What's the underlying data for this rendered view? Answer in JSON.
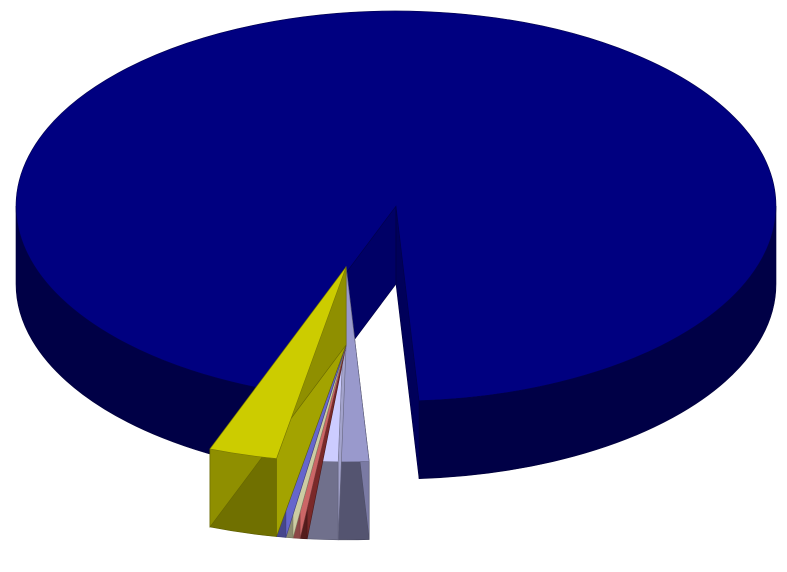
{
  "chart_data": {
    "type": "pie",
    "title": "",
    "three_d": true,
    "legend": "none",
    "series": [
      {
        "values": [
          93.2,
          1.3,
          1.3,
          0.3,
          0.3,
          0.3,
          0.4,
          2.9
        ],
        "colors": [
          "#000080",
          "#9999CC",
          "#CCCCFF",
          "#993333",
          "#FF8080",
          "#FFFFCC",
          "#8080FF",
          "#CCCC00"
        ]
      }
    ]
  }
}
